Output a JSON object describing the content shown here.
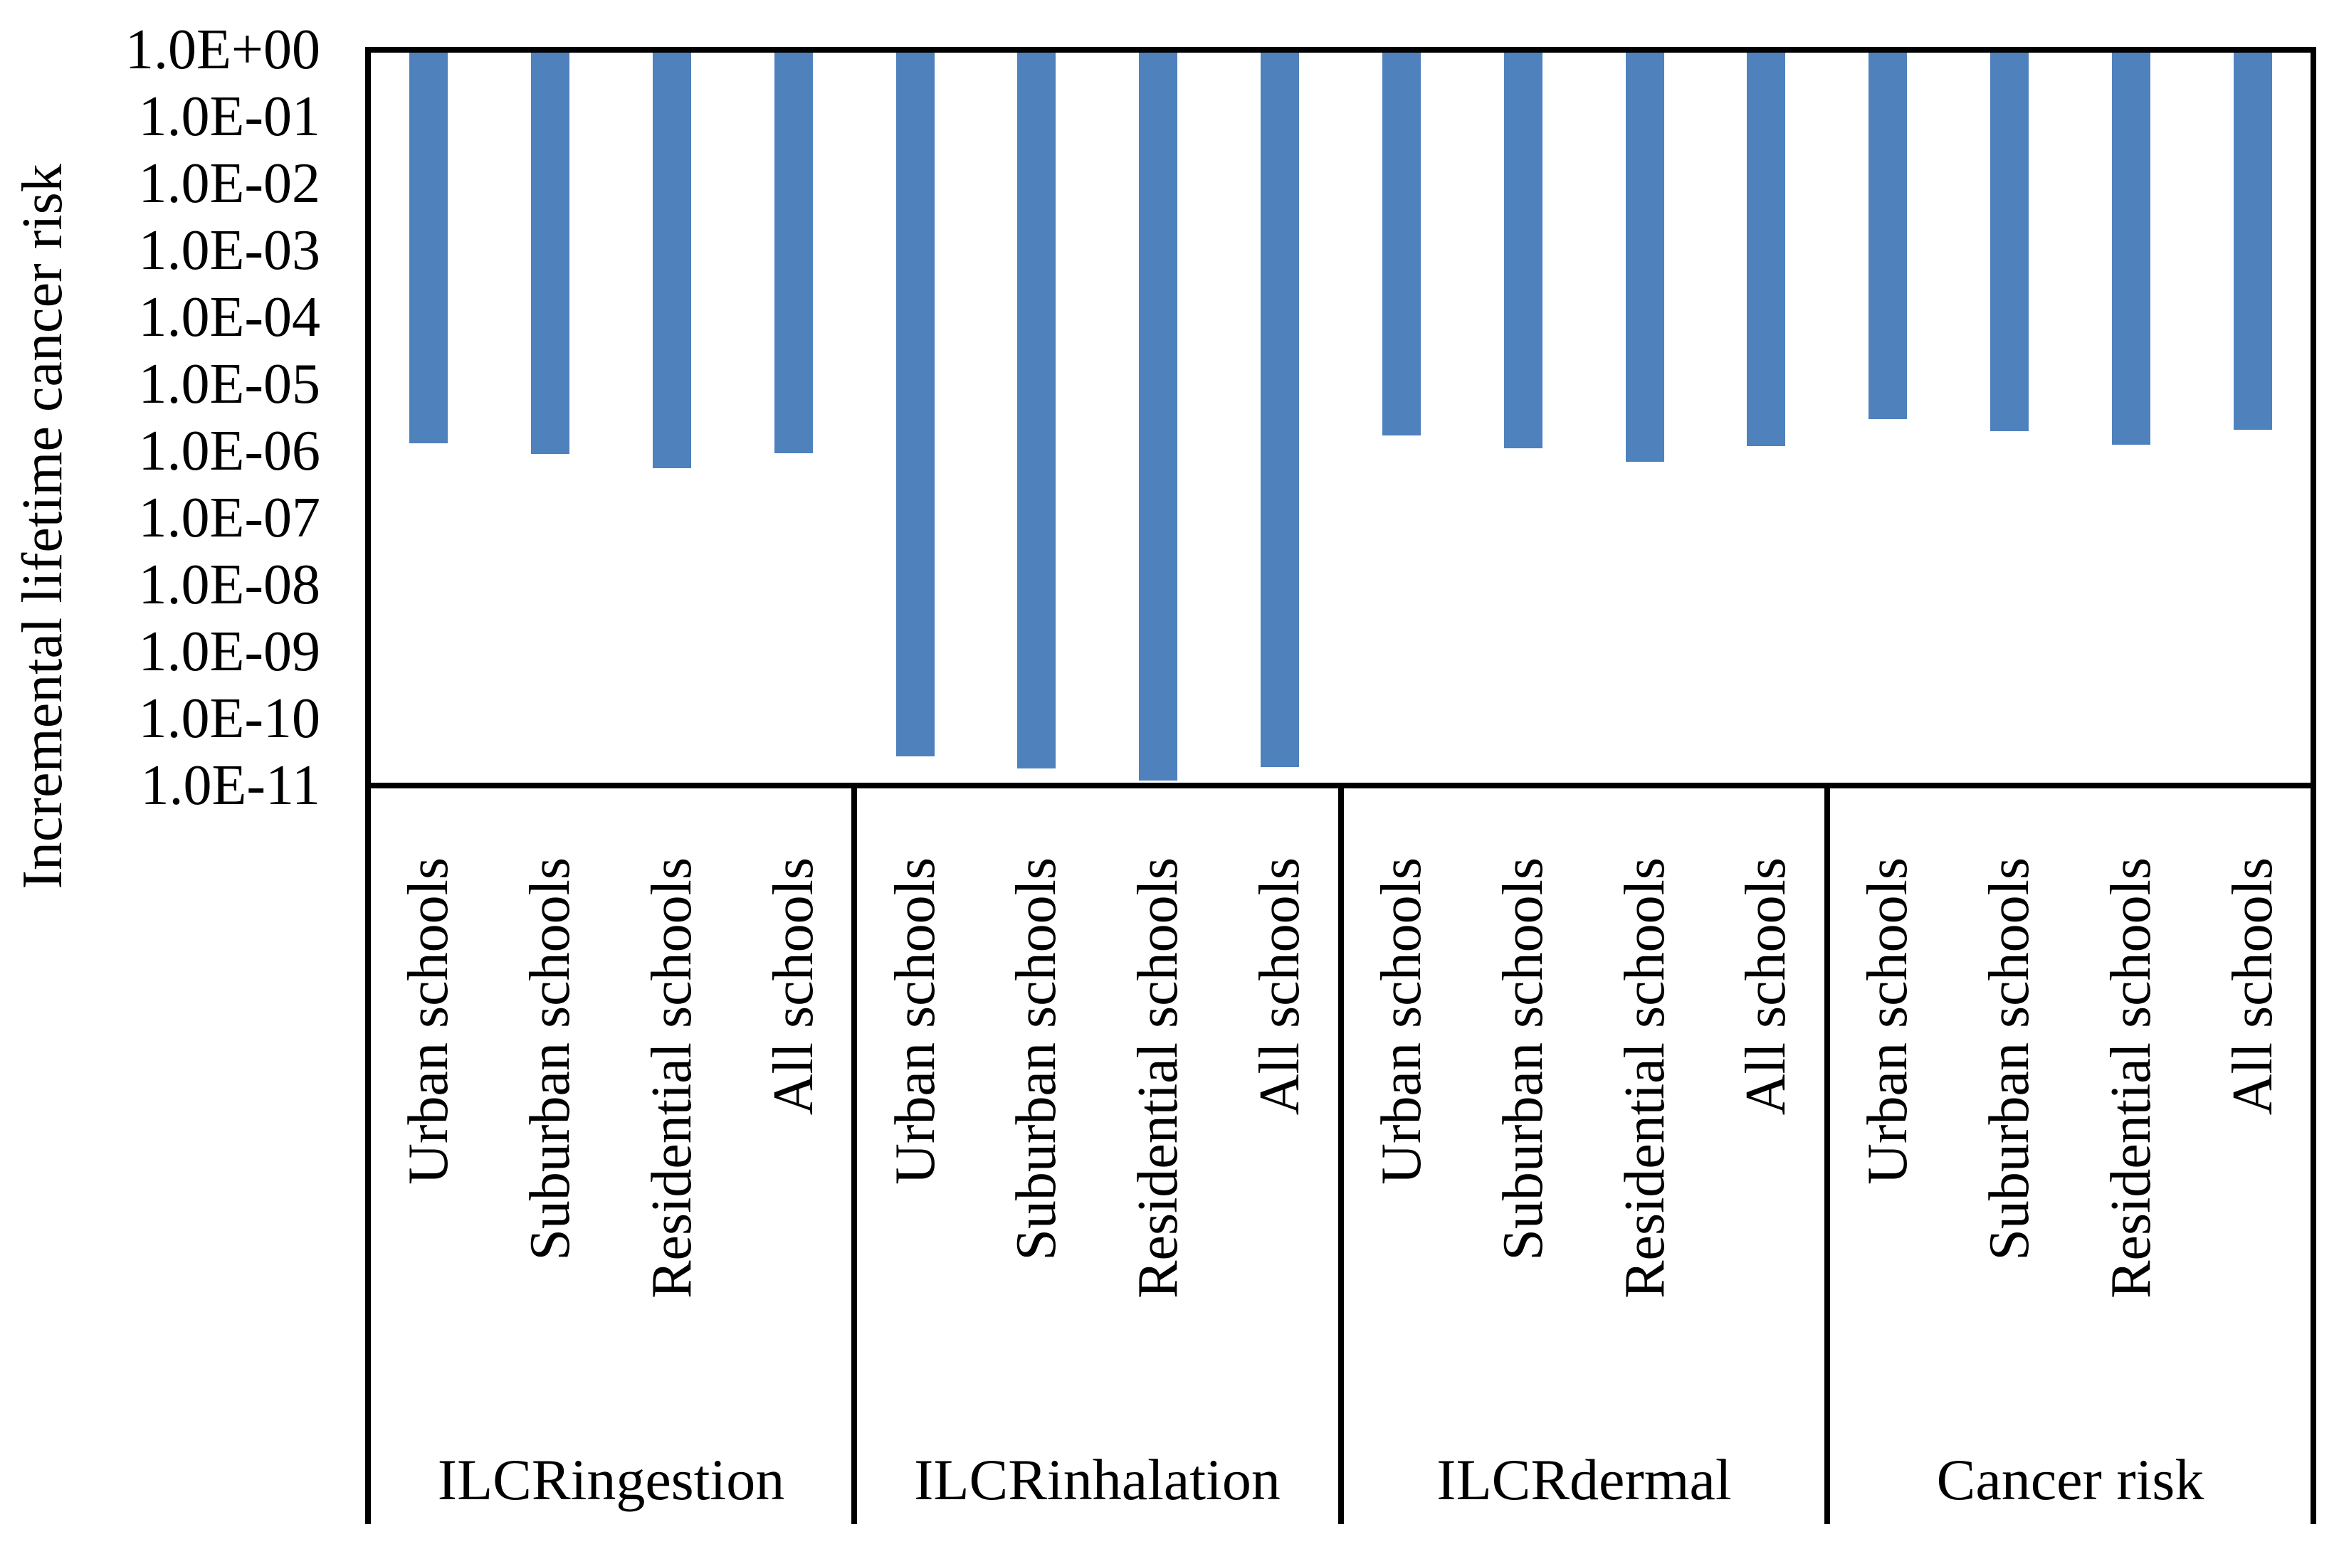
{
  "y_axis": {
    "title": "Incremental lifetime cancer risk",
    "scale": "log",
    "max_label": "1.0E+00",
    "min_label": "1.0E-11",
    "tick_labels": [
      "1.0E+00",
      "1.0E-01",
      "1.0E-02",
      "1.0E-03",
      "1.0E-04",
      "1.0E-05",
      "1.0E-06",
      "1.0E-07",
      "1.0E-08",
      "1.0E-09",
      "1.0E-10",
      "1.0E-11"
    ]
  },
  "chart_data": {
    "type": "bar",
    "title": "",
    "xlabel": "",
    "ylabel": "Incremental lifetime cancer risk",
    "y_scale": "log",
    "ylim": [
      1e-11,
      1.0
    ],
    "grid": false,
    "legend": "none",
    "bar_color": "#4F81BD",
    "bars_hang_from": 1.0,
    "categories": [
      "Urban schools",
      "Suburban schools",
      "Residential schools",
      "All schools"
    ],
    "groups": [
      {
        "label": "ILCRingestion",
        "values": [
          1.3e-06,
          9e-07,
          5.5e-07,
          9.3e-07
        ]
      },
      {
        "label": "ILCRinhalation",
        "values": [
          2.7e-11,
          1.8e-11,
          1.2e-11,
          1.9e-11
        ]
      },
      {
        "label": "ILCRdermal",
        "values": [
          1.7e-06,
          1.1e-06,
          7e-07,
          1.2e-06
        ]
      },
      {
        "label": "Cancer risk",
        "values": [
          3e-06,
          2e-06,
          1.25e-06,
          2.1e-06
        ]
      }
    ]
  }
}
